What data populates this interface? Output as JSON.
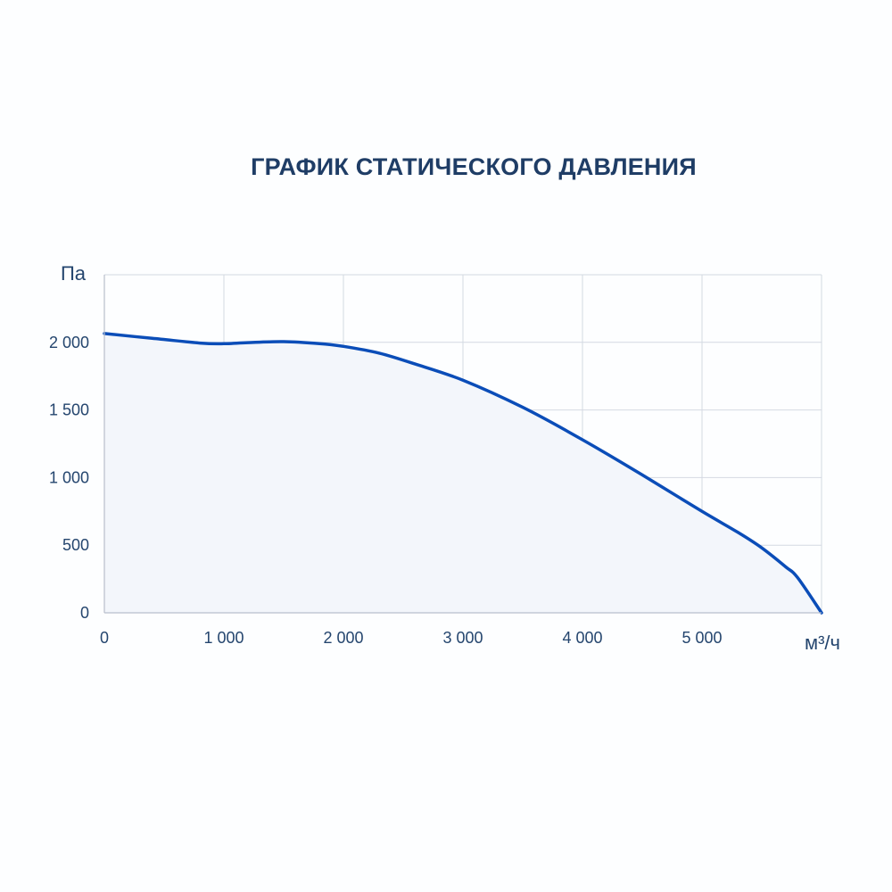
{
  "chart_data": {
    "type": "area",
    "title": "ГРАФИК СТАТИЧЕСКОГО ДАВЛЕНИЯ",
    "xlabel": "м³/ч",
    "ylabel": "Па",
    "xlim": [
      0,
      6000
    ],
    "ylim": [
      0,
      2500
    ],
    "x_ticks": [
      0,
      1000,
      2000,
      3000,
      4000,
      5000
    ],
    "x_tick_labels": [
      "0",
      "1 000",
      "2 000",
      "3 000",
      "4 000",
      "5 000"
    ],
    "y_ticks": [
      0,
      500,
      1000,
      1500,
      2000
    ],
    "y_tick_labels": [
      "0",
      "500",
      "1 000",
      "1 500",
      "2 000"
    ],
    "grid": true,
    "series": [
      {
        "x": [
          0,
          400,
          800,
          1000,
          1200,
          1500,
          1800,
          2000,
          2300,
          2600,
          3000,
          3500,
          4000,
          4500,
          5000,
          5300,
          5500,
          5700,
          5800,
          6000
        ],
        "y": [
          2065,
          2030,
          1995,
          1990,
          1998,
          2005,
          1990,
          1970,
          1920,
          1840,
          1720,
          1520,
          1280,
          1020,
          750,
          595,
          480,
          340,
          260,
          0
        ]
      }
    ],
    "colors": {
      "line": "#0b4db8",
      "fill": "#f3f6fb",
      "grid": "#d4d9e2",
      "axis": "#b8bfcc",
      "text": "#24456e"
    }
  }
}
